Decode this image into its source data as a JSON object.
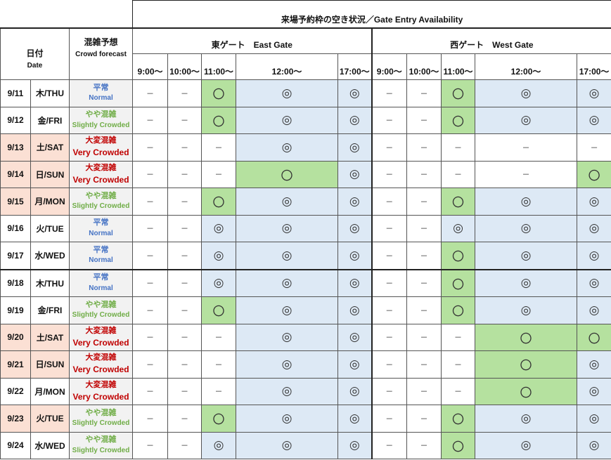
{
  "header": {
    "title": "来場予約枠の空き状況／Gate Entry Availability",
    "date_jp": "日付",
    "date_en": "Date",
    "crowd_jp": "混雑予想",
    "crowd_en": "Crowd forecast",
    "east_gate": "東ゲート　East Gate",
    "west_gate": "西ゲート　West Gate",
    "times": [
      "9:00～",
      "10:00～",
      "11:00～",
      "12:00～",
      "17:00～"
    ]
  },
  "symbols": {
    "none": "－",
    "o": "〇",
    "oo": "◎"
  },
  "colors": {
    "available_some": "#b5e19f",
    "available_many": "#dde9f5",
    "weekend_holiday": "#fbe0d4",
    "normal": "#4472c4",
    "slightly_crowded": "#70ad47",
    "very_crowded": "#c00000"
  },
  "crowd_levels": {
    "normal": {
      "jp": "平常",
      "en": "Normal"
    },
    "slight": {
      "jp": "やや混雑",
      "en": "Slightly Crowded"
    },
    "very": {
      "jp": "大変混雑",
      "en": "Very Crowded"
    }
  },
  "rows": [
    {
      "date": "9/11",
      "day": "木/THU",
      "crowd": "normal",
      "holiday": false,
      "east": [
        "none",
        "none",
        "o",
        "oo",
        "oo"
      ],
      "west": [
        "none",
        "none",
        "o",
        "oo",
        "oo"
      ]
    },
    {
      "date": "9/12",
      "day": "金/FRI",
      "crowd": "slight",
      "holiday": false,
      "east": [
        "none",
        "none",
        "o",
        "oo",
        "oo"
      ],
      "west": [
        "none",
        "none",
        "o",
        "oo",
        "oo"
      ]
    },
    {
      "date": "9/13",
      "day": "土/SAT",
      "crowd": "very",
      "holiday": true,
      "east": [
        "none",
        "none",
        "none",
        "oo",
        "oo"
      ],
      "west": [
        "none",
        "none",
        "none",
        "none",
        "none"
      ]
    },
    {
      "date": "9/14",
      "day": "日/SUN",
      "crowd": "very",
      "holiday": true,
      "east": [
        "none",
        "none",
        "none",
        "o",
        "oo"
      ],
      "west": [
        "none",
        "none",
        "none",
        "none",
        "o"
      ]
    },
    {
      "date": "9/15",
      "day": "月/MON",
      "crowd": "slight",
      "holiday": true,
      "east": [
        "none",
        "none",
        "o",
        "oo",
        "oo"
      ],
      "west": [
        "none",
        "none",
        "o",
        "oo",
        "oo"
      ]
    },
    {
      "date": "9/16",
      "day": "火/TUE",
      "crowd": "normal",
      "holiday": false,
      "east": [
        "none",
        "none",
        "oo",
        "oo",
        "oo"
      ],
      "west": [
        "none",
        "none",
        "oo",
        "oo",
        "oo"
      ]
    },
    {
      "date": "9/17",
      "day": "水/WED",
      "crowd": "normal",
      "holiday": false,
      "east": [
        "none",
        "none",
        "oo",
        "oo",
        "oo"
      ],
      "west": [
        "none",
        "none",
        "o",
        "oo",
        "oo"
      ]
    },
    {
      "date": "9/18",
      "day": "木/THU",
      "crowd": "normal",
      "holiday": false,
      "east": [
        "none",
        "none",
        "oo",
        "oo",
        "oo"
      ],
      "west": [
        "none",
        "none",
        "o",
        "oo",
        "oo"
      ]
    },
    {
      "date": "9/19",
      "day": "金/FRI",
      "crowd": "slight",
      "holiday": false,
      "east": [
        "none",
        "none",
        "o",
        "oo",
        "oo"
      ],
      "west": [
        "none",
        "none",
        "o",
        "oo",
        "oo"
      ]
    },
    {
      "date": "9/20",
      "day": "土/SAT",
      "crowd": "very",
      "holiday": true,
      "east": [
        "none",
        "none",
        "none",
        "oo",
        "oo"
      ],
      "west": [
        "none",
        "none",
        "none",
        "o",
        "o"
      ]
    },
    {
      "date": "9/21",
      "day": "日/SUN",
      "crowd": "very",
      "holiday": true,
      "east": [
        "none",
        "none",
        "none",
        "oo",
        "oo"
      ],
      "west": [
        "none",
        "none",
        "none",
        "o",
        "oo"
      ]
    },
    {
      "date": "9/22",
      "day": "月/MON",
      "crowd": "very",
      "holiday": false,
      "east": [
        "none",
        "none",
        "none",
        "oo",
        "oo"
      ],
      "west": [
        "none",
        "none",
        "none",
        "o",
        "oo"
      ]
    },
    {
      "date": "9/23",
      "day": "火/TUE",
      "crowd": "slight",
      "holiday": true,
      "east": [
        "none",
        "none",
        "o",
        "oo",
        "oo"
      ],
      "west": [
        "none",
        "none",
        "o",
        "oo",
        "oo"
      ]
    },
    {
      "date": "9/24",
      "day": "水/WED",
      "crowd": "slight",
      "holiday": false,
      "east": [
        "none",
        "none",
        "oo",
        "oo",
        "oo"
      ],
      "west": [
        "none",
        "none",
        "o",
        "oo",
        "oo"
      ]
    }
  ]
}
